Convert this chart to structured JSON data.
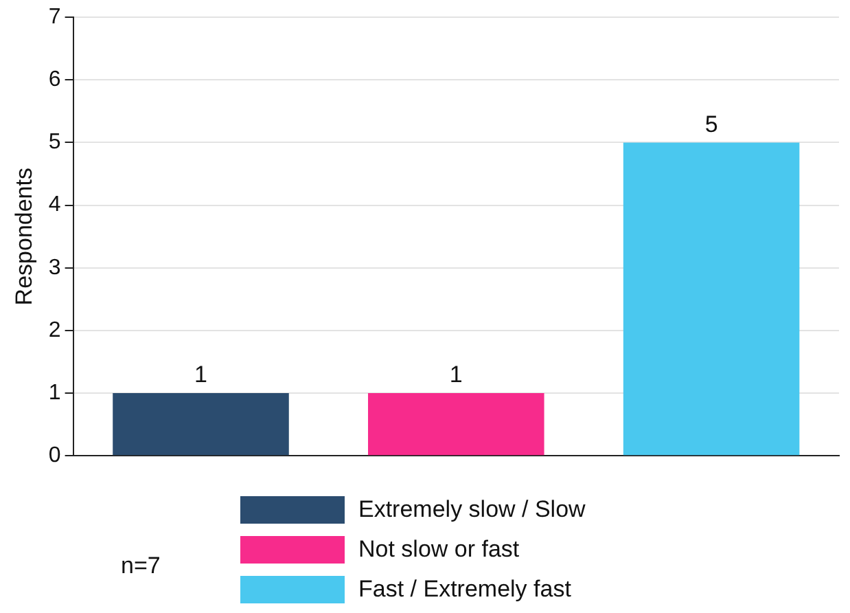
{
  "chart_data": {
    "type": "bar",
    "ylabel": "Respondents",
    "categories": [
      null,
      null,
      null
    ],
    "series": [
      {
        "name": "Extremely slow / Slow",
        "color": "#2b4c6f",
        "values": [
          1,
          null,
          null
        ]
      },
      {
        "name": "Not slow or fast",
        "color": "#f72b8c",
        "values": [
          null,
          1,
          null
        ]
      },
      {
        "name": "Fast / Extremely fast",
        "color": "#4ac8ef",
        "values": [
          null,
          null,
          5
        ]
      }
    ],
    "ylim": [
      0,
      7
    ],
    "yticks": [
      0,
      1,
      2,
      3,
      4,
      5,
      6,
      7
    ],
    "grid": "y",
    "legend": "bottom",
    "data_labels": true,
    "annotations": [
      "n=7"
    ]
  }
}
